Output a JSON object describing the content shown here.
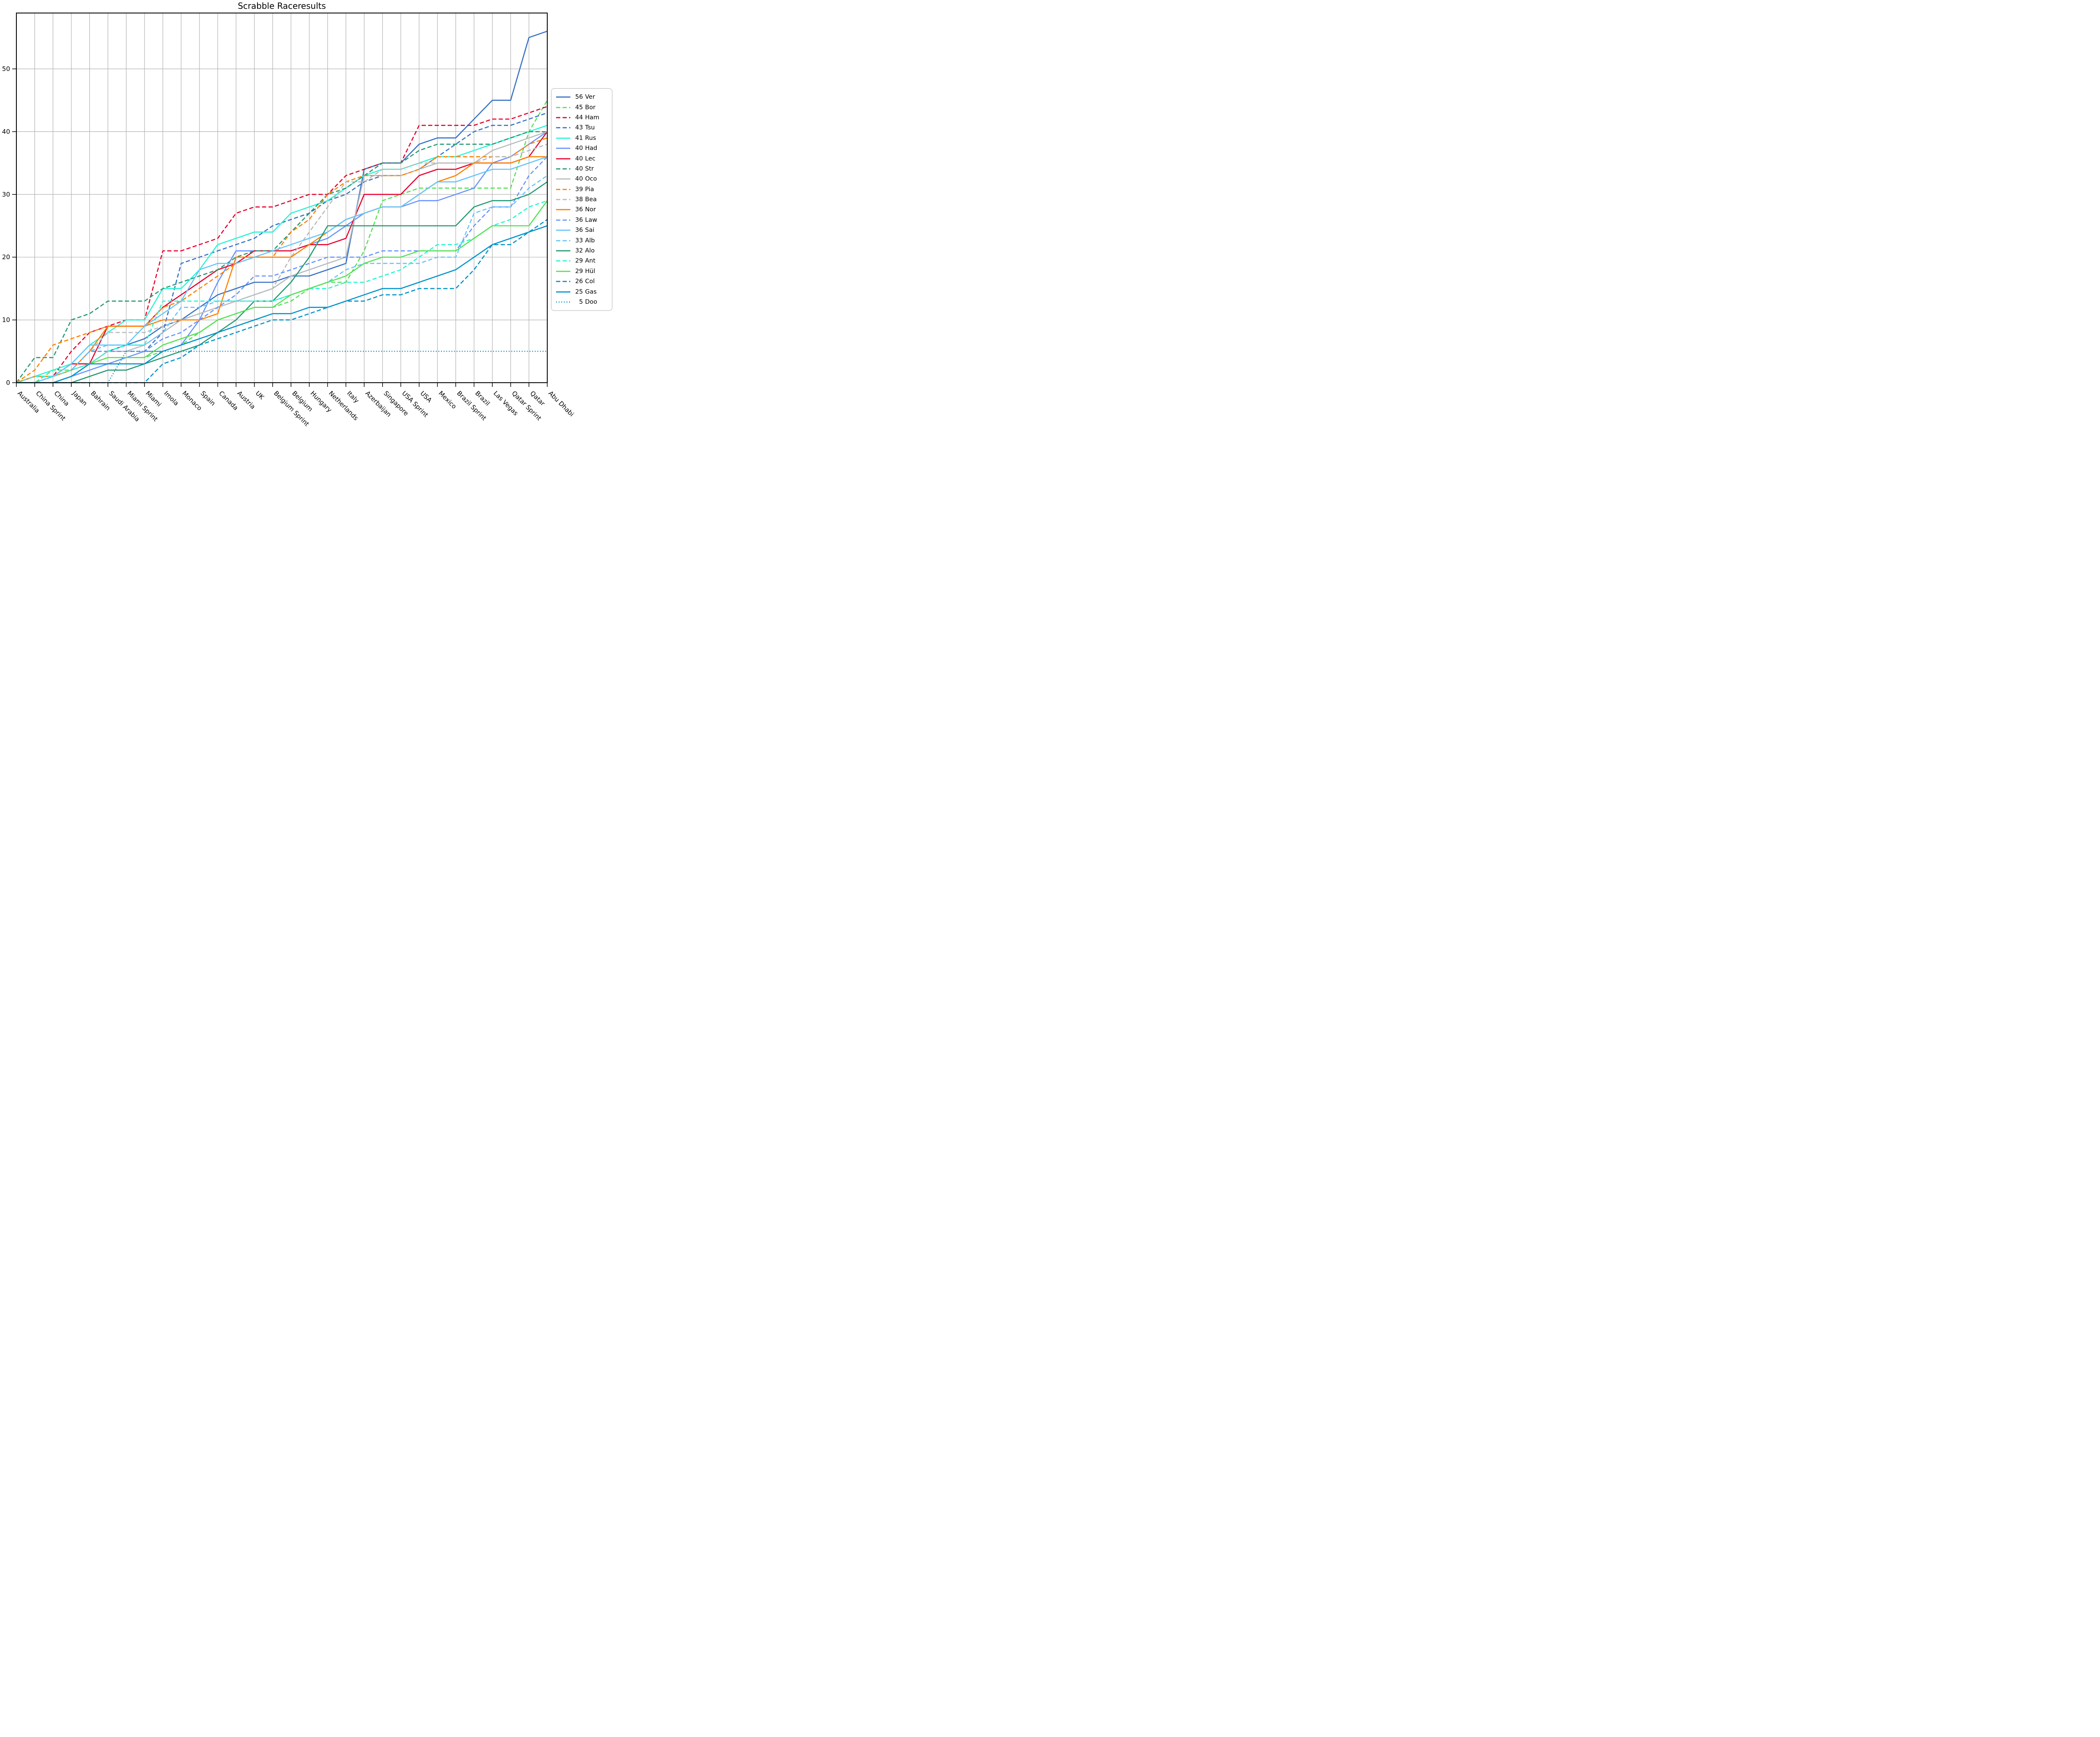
{
  "title": "Scrabble Raceresults",
  "chart_data": {
    "type": "line",
    "title": "Scrabble Raceresults",
    "xlabel": "",
    "ylabel": "",
    "grid": true,
    "legend_position": "right",
    "ylim": [
      0,
      58.9
    ],
    "yticks": [
      0,
      10,
      20,
      30,
      40,
      50
    ],
    "x_categories": [
      "Australia",
      "China Sprint",
      "China",
      "Japan",
      "Bahrain",
      "Saudi Arabia",
      "Miami Sprint",
      "Miami",
      "Imola",
      "Monaco",
      "Spain",
      "Canada",
      "Austria",
      "UK",
      "Belgium Sprint",
      "Belgium",
      "Hungary",
      "Netherlands",
      "Italy",
      "Azerbaijan",
      "Singapore",
      "USA Sprint",
      "USA",
      "Mexico",
      "Brazil Sprint",
      "Brazil",
      "Las Vegas",
      "Qatar Sprint",
      "Qatar",
      "Abu Dhabi"
    ],
    "series": [
      {
        "name": "Ver",
        "total": 56,
        "legend_value": "56",
        "color": "#3671C6",
        "style": "solid",
        "values": [
          0,
          1,
          1,
          3,
          3,
          5,
          6,
          7,
          9,
          10,
          12,
          14,
          15,
          16,
          16,
          17,
          17,
          18,
          19,
          34,
          35,
          35,
          38,
          39,
          39,
          42,
          45,
          45,
          55,
          56
        ]
      },
      {
        "name": "Bor",
        "total": 45,
        "legend_value": "45",
        "color": "#52E252",
        "style": "dashed",
        "values": [
          0,
          0,
          2,
          2,
          3,
          3,
          4,
          4,
          5,
          6,
          8,
          10,
          11,
          12,
          12,
          13,
          15,
          16,
          16,
          21,
          29,
          30,
          31,
          31,
          31,
          31,
          31,
          31,
          40,
          45
        ]
      },
      {
        "name": "Ham",
        "total": 44,
        "legend_value": "44",
        "color": "#E8002D",
        "style": "dashed",
        "values": [
          0,
          0,
          1,
          5,
          8,
          9,
          10,
          10,
          21,
          21,
          22,
          23,
          27,
          28,
          28,
          29,
          30,
          30,
          33,
          34,
          35,
          35,
          41,
          41,
          41,
          41,
          42,
          42,
          43,
          44
        ]
      },
      {
        "name": "Tsu",
        "total": 43,
        "legend_value": "43",
        "color": "#3671C6",
        "style": "dashed",
        "values": [
          0,
          0,
          1,
          2,
          5,
          5,
          5,
          5,
          8,
          19,
          20,
          21,
          22,
          23,
          25,
          26,
          27,
          29,
          30,
          32,
          33,
          33,
          34,
          36,
          38,
          40,
          41,
          41,
          42,
          43
        ]
      },
      {
        "name": "Rus",
        "total": 41,
        "legend_value": "41",
        "color": "#27F4D2",
        "style": "solid",
        "values": [
          0,
          1,
          2,
          3,
          6,
          8,
          10,
          10,
          15,
          15,
          18,
          22,
          23,
          24,
          24,
          27,
          28,
          29,
          31,
          33,
          34,
          34,
          35,
          36,
          36,
          37,
          38,
          39,
          40,
          41
        ]
      },
      {
        "name": "Had",
        "total": 40,
        "legend_value": "40",
        "color": "#6692FF",
        "style": "solid",
        "values": [
          0,
          0,
          0,
          1,
          2,
          3,
          4,
          5,
          5,
          6,
          10,
          16,
          21,
          21,
          21,
          21,
          22,
          23,
          25,
          27,
          28,
          28,
          29,
          29,
          30,
          31,
          35,
          36,
          38,
          40
        ]
      },
      {
        "name": "Lec",
        "total": 40,
        "legend_value": "40",
        "color": "#E8002D",
        "style": "solid",
        "values": [
          0,
          1,
          1,
          3,
          3,
          9,
          9,
          9,
          12,
          14,
          16,
          18,
          19,
          21,
          21,
          21,
          22,
          22,
          23,
          30,
          30,
          30,
          33,
          34,
          34,
          35,
          35,
          35,
          36,
          40
        ]
      },
      {
        "name": "Str",
        "total": 40,
        "legend_value": "40",
        "color": "#229971",
        "style": "dashed",
        "values": [
          0,
          4,
          4,
          10,
          11,
          13,
          13,
          13,
          15,
          16,
          17,
          18,
          20,
          21,
          21,
          24,
          27,
          30,
          31,
          33,
          35,
          35,
          37,
          38,
          38,
          38,
          38,
          39,
          40,
          40
        ]
      },
      {
        "name": "Oco",
        "total": 40,
        "legend_value": "40",
        "color": "#B6BABD",
        "style": "solid",
        "values": [
          0,
          1,
          1,
          2,
          3,
          5,
          5,
          6,
          8,
          10,
          11,
          12,
          13,
          14,
          15,
          17,
          18,
          19,
          20,
          33,
          33,
          33,
          34,
          35,
          35,
          35,
          37,
          38,
          39,
          40
        ]
      },
      {
        "name": "Pia",
        "total": 39,
        "legend_value": "39",
        "color": "#FF8000",
        "style": "dashed",
        "values": [
          0,
          2,
          6,
          7,
          8,
          9,
          9,
          9,
          12,
          13,
          15,
          17,
          19,
          20,
          20,
          24,
          26,
          30,
          32,
          33,
          33,
          33,
          34,
          36,
          36,
          36,
          36,
          36,
          38,
          39
        ]
      },
      {
        "name": "Bea",
        "total": 38,
        "legend_value": "38",
        "color": "#B6BABD",
        "style": "dashed",
        "values": [
          0,
          1,
          1,
          2,
          5,
          8,
          8,
          8,
          9,
          10,
          11,
          12,
          13,
          14,
          15,
          20,
          24,
          28,
          32,
          32,
          34,
          34,
          35,
          35,
          35,
          35,
          36,
          36,
          37,
          38
        ]
      },
      {
        "name": "Nor",
        "total": 36,
        "legend_value": "36",
        "color": "#FF8000",
        "style": "solid",
        "values": [
          0,
          1,
          1,
          2,
          5,
          9,
          9,
          9,
          10,
          10,
          10,
          11,
          20,
          20,
          20,
          20,
          22,
          24,
          26,
          27,
          28,
          28,
          30,
          32,
          33,
          35,
          35,
          35,
          36,
          36
        ]
      },
      {
        "name": "Law",
        "total": 36,
        "legend_value": "36",
        "color": "#6692FF",
        "style": "dashed",
        "values": [
          0,
          0,
          1,
          2,
          5,
          5,
          5,
          5,
          7,
          8,
          10,
          12,
          14,
          17,
          17,
          18,
          19,
          20,
          20,
          20,
          21,
          21,
          21,
          21,
          21,
          25,
          28,
          28,
          33,
          36
        ]
      },
      {
        "name": "Sai",
        "total": 36,
        "legend_value": "36",
        "color": "#64C4FF",
        "style": "solid",
        "values": [
          0,
          0,
          1,
          3,
          6,
          6,
          6,
          9,
          11,
          13,
          18,
          19,
          19,
          20,
          21,
          22,
          23,
          24,
          26,
          27,
          28,
          28,
          30,
          32,
          32,
          33,
          34,
          34,
          35,
          36
        ]
      },
      {
        "name": "Alb",
        "total": 33,
        "legend_value": "33",
        "color": "#64C4FF",
        "style": "dashed",
        "values": [
          0,
          0,
          1,
          2,
          5,
          6,
          6,
          6,
          8,
          12,
          12,
          13,
          13,
          13,
          13,
          14,
          15,
          16,
          18,
          19,
          19,
          19,
          19,
          20,
          20,
          27,
          28,
          28,
          31,
          33
        ]
      },
      {
        "name": "Alo",
        "total": 32,
        "legend_value": "32",
        "color": "#229971",
        "style": "solid",
        "values": [
          0,
          0,
          0,
          0,
          1,
          2,
          2,
          3,
          4,
          5,
          6,
          8,
          10,
          13,
          13,
          16,
          20,
          25,
          25,
          25,
          25,
          25,
          25,
          25,
          25,
          28,
          29,
          29,
          30,
          32
        ]
      },
      {
        "name": "Ant",
        "total": 29,
        "legend_value": "29",
        "color": "#27F4D2",
        "style": "dashed",
        "values": [
          0,
          1,
          1,
          2,
          3,
          5,
          6,
          6,
          13,
          13,
          13,
          13,
          13,
          13,
          13,
          14,
          15,
          15,
          16,
          16,
          17,
          18,
          20,
          22,
          22,
          23,
          25,
          26,
          28,
          29
        ]
      },
      {
        "name": "Hül",
        "total": 29,
        "legend_value": "29",
        "color": "#52E252",
        "style": "solid",
        "values": [
          0,
          0,
          0,
          1,
          3,
          4,
          4,
          4,
          6,
          7,
          8,
          10,
          11,
          12,
          12,
          14,
          15,
          16,
          17,
          19,
          20,
          20,
          21,
          21,
          21,
          23,
          25,
          25,
          25,
          29
        ]
      },
      {
        "name": "Col",
        "total": 26,
        "legend_value": "26",
        "color": "#0093CC",
        "style": "dashed",
        "values": [
          0,
          0,
          0,
          0,
          0,
          0,
          0,
          0,
          3,
          4,
          6,
          7,
          8,
          9,
          10,
          10,
          11,
          12,
          13,
          13,
          14,
          14,
          15,
          15,
          15,
          18,
          22,
          22,
          24,
          26
        ]
      },
      {
        "name": "Gas",
        "total": 25,
        "legend_value": "25",
        "color": "#0093CC",
        "style": "solid",
        "values": [
          0,
          0,
          0,
          1,
          3,
          3,
          3,
          3,
          5,
          6,
          7,
          8,
          9,
          10,
          11,
          11,
          12,
          12,
          13,
          14,
          15,
          15,
          16,
          17,
          18,
          20,
          22,
          23,
          24,
          25
        ]
      },
      {
        "name": "Doo",
        "total": 5,
        "legend_value": "5",
        "color": "#0093CC",
        "style": "dotted",
        "values": [
          0,
          0,
          0,
          0,
          0,
          0,
          5,
          5,
          5,
          5,
          5,
          5,
          5,
          5,
          5,
          5,
          5,
          5,
          5,
          5,
          5,
          5,
          5,
          5,
          5,
          5,
          5,
          5,
          5,
          5
        ]
      }
    ]
  }
}
